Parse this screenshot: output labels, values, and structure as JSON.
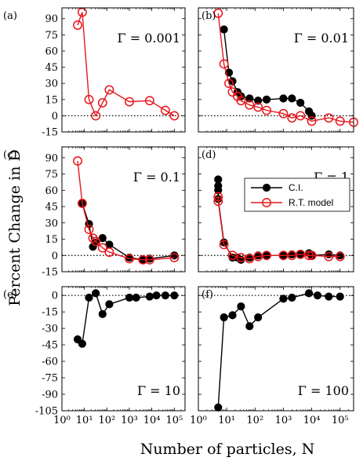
{
  "figure": {
    "ylabel": "Percent Change in D",
    "xlabel": "Number of particles, N"
  },
  "colors": {
    "ci": "#000000",
    "rt": "#e8161b"
  },
  "chart_data": [
    {
      "type": "line",
      "panel": "(a)",
      "annotation": "Γ = 0.001",
      "xscale": "log",
      "xlim": [
        1,
        300000
      ],
      "ylim": [
        -15,
        100
      ],
      "yticks": [
        -15,
        0,
        15,
        30,
        45,
        60,
        75,
        90
      ],
      "series": [
        {
          "key": "rt",
          "x": [
            5,
            8,
            16,
            32,
            64,
            128,
            1000,
            8000,
            40000,
            100000
          ],
          "y": [
            84,
            96,
            15,
            0,
            12,
            24,
            13,
            14,
            5,
            0
          ]
        }
      ]
    },
    {
      "type": "line",
      "panel": "(b)",
      "annotation": "Γ = 0.01",
      "xscale": "log",
      "xlim": [
        1,
        300000
      ],
      "ylim": [
        -15,
        100
      ],
      "yticks": [
        -15,
        0,
        15,
        30,
        45,
        60,
        75,
        90
      ],
      "series": [
        {
          "key": "ci",
          "x": [
            8,
            12,
            16,
            24,
            32,
            64,
            128,
            256,
            1000,
            2000,
            4000,
            8000,
            10000
          ],
          "y": [
            80,
            40,
            32,
            22,
            18,
            16,
            14,
            15,
            16,
            16,
            12,
            4,
            0
          ]
        },
        {
          "key": "rt",
          "x": [
            5,
            8,
            12,
            16,
            24,
            32,
            64,
            128,
            256,
            1000,
            2000,
            4000,
            10000,
            40000,
            100000,
            300000
          ],
          "y": [
            95,
            48,
            30,
            22,
            18,
            14,
            10,
            8,
            5,
            2,
            -2,
            0,
            -5,
            -2,
            -5,
            -6
          ]
        }
      ]
    },
    {
      "type": "line",
      "panel": "(c)",
      "annotation": "Γ = 0.1",
      "xscale": "log",
      "xlim": [
        1,
        300000
      ],
      "ylim": [
        -15,
        100
      ],
      "yticks": [
        -15,
        0,
        15,
        30,
        45,
        60,
        75,
        90
      ],
      "series": [
        {
          "key": "ci",
          "x": [
            8,
            16,
            24,
            32,
            64,
            128,
            1000,
            4000,
            8000,
            100000
          ],
          "y": [
            48,
            29,
            8,
            12,
            16,
            10,
            -2,
            -4,
            -3,
            0
          ]
        },
        {
          "key": "rt",
          "x": [
            5,
            8,
            16,
            24,
            32,
            64,
            128,
            1000,
            4000,
            8000,
            100000
          ],
          "y": [
            87,
            48,
            24,
            16,
            13,
            7,
            3,
            -3,
            -4,
            -4,
            -2
          ]
        }
      ]
    },
    {
      "type": "line",
      "panel": "(d)",
      "annotation": "Γ = 1",
      "xscale": "log",
      "xlim": [
        1,
        300000
      ],
      "ylim": [
        -15,
        100
      ],
      "yticks": [
        -15,
        0,
        15,
        30,
        45,
        60,
        75,
        90
      ],
      "legend": {
        "position": "upper-right",
        "entries": [
          {
            "key": "ci",
            "label": "C.I."
          },
          {
            "key": "rt",
            "label": "R.T. model"
          }
        ]
      },
      "series": [
        {
          "key": "ci",
          "x": [
            5,
            5,
            5,
            5,
            8,
            16,
            24,
            32,
            64,
            128,
            256,
            1000,
            2000,
            4000,
            8000,
            10000,
            40000,
            100000
          ],
          "y": [
            70,
            64,
            60,
            52,
            12,
            -2,
            -2,
            -4,
            -2,
            0,
            0,
            0,
            1,
            1,
            2,
            0,
            1,
            0
          ]
        },
        {
          "key": "rt",
          "x": [
            5,
            5,
            8,
            16,
            32,
            64,
            128,
            256,
            1000,
            2000,
            4000,
            8000,
            10000,
            40000,
            100000
          ],
          "y": [
            54,
            50,
            10,
            0,
            -2,
            -3,
            -1,
            0,
            0,
            0,
            1,
            0,
            0,
            -1,
            -1
          ]
        }
      ]
    },
    {
      "type": "line",
      "panel": "(e)",
      "annotation": "Γ = 10",
      "xscale": "log",
      "xlim": [
        1,
        300000
      ],
      "ylim": [
        -105,
        8
      ],
      "yticks": [
        -105,
        -90,
        -75,
        -60,
        -45,
        -30,
        -15,
        0
      ],
      "series": [
        {
          "key": "ci",
          "x": [
            5,
            8,
            16,
            32,
            64,
            128,
            1000,
            2000,
            8000,
            16000,
            40000,
            100000
          ],
          "y": [
            -40,
            -44,
            -2,
            2,
            -17,
            -8,
            -2,
            -2,
            -1,
            0,
            0,
            0
          ]
        }
      ]
    },
    {
      "type": "line",
      "panel": "(f)",
      "annotation": "Γ = 100",
      "xscale": "log",
      "xlim": [
        1,
        300000
      ],
      "ylim": [
        -105,
        8
      ],
      "yticks": [
        -105,
        -90,
        -75,
        -60,
        -45,
        -30,
        -15,
        0
      ],
      "series": [
        {
          "key": "ci",
          "x": [
            5,
            8,
            16,
            32,
            64,
            128,
            1000,
            2000,
            8000,
            16000,
            40000,
            100000
          ],
          "y": [
            -102,
            -20,
            -18,
            -10,
            -28,
            -20,
            -3,
            -2,
            2,
            0,
            -1,
            -1
          ]
        }
      ]
    }
  ],
  "xtick_labels": [
    "10⁰",
    "10¹",
    "10²",
    "10³",
    "10⁴",
    "10⁵"
  ]
}
